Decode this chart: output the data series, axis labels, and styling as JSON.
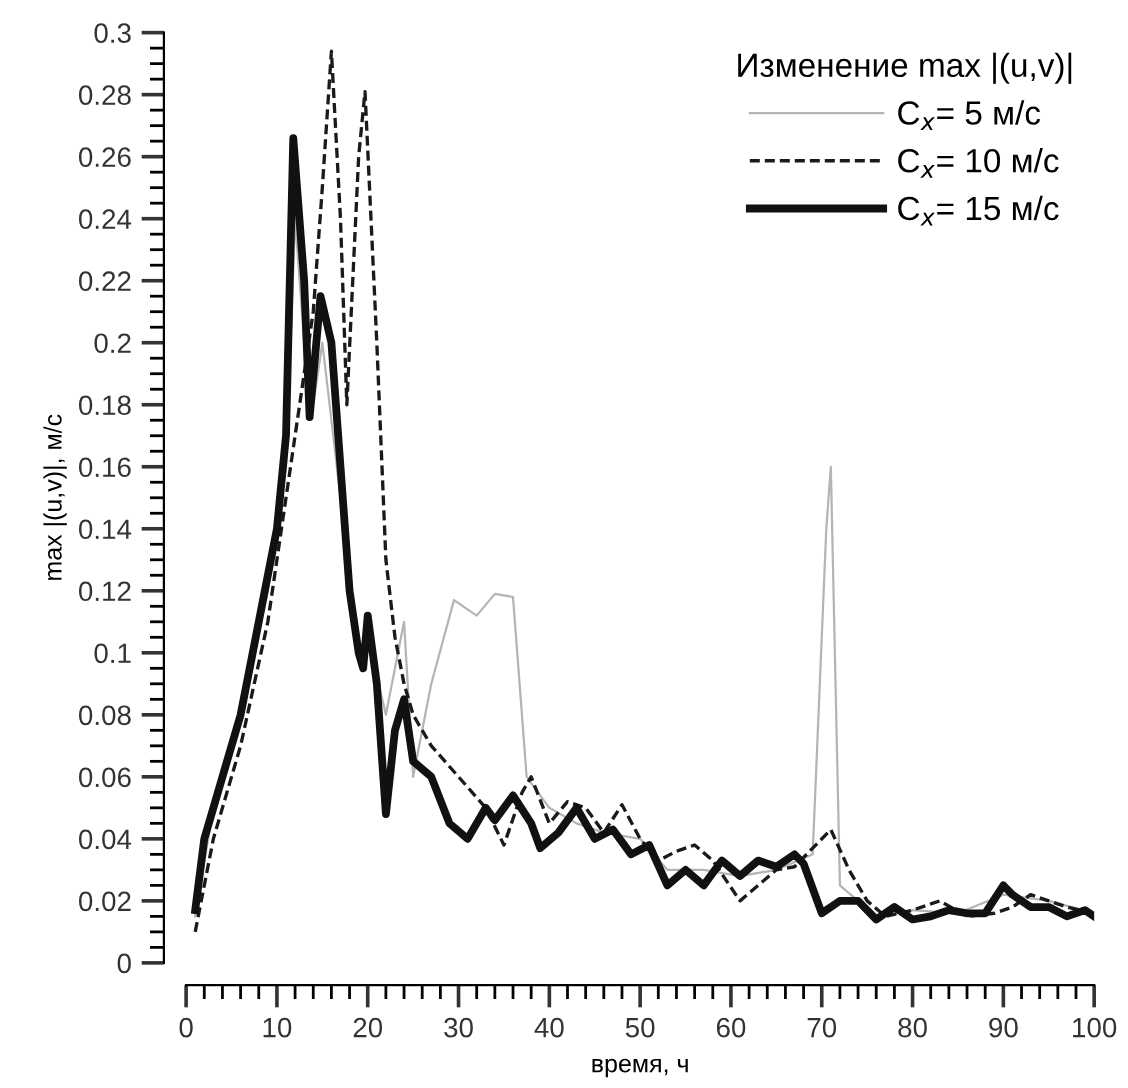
{
  "chart_data": {
    "type": "line",
    "xlabel": "время, ч",
    "ylabel": "max |(u,v)|, м/с",
    "legend_title": "Изменение max |(u,v)|",
    "xlim": [
      0,
      100
    ],
    "ylim": [
      0,
      0.3
    ],
    "xticks": [
      0,
      10,
      20,
      30,
      40,
      50,
      60,
      70,
      80,
      90,
      100
    ],
    "yticks": [
      0,
      0.02,
      0.04,
      0.06,
      0.08,
      0.1,
      0.12,
      0.14,
      0.16,
      0.18,
      0.2,
      0.22,
      0.24,
      0.26,
      0.28,
      0.3
    ],
    "grid": false,
    "legend": "top right",
    "marker": "none",
    "series": [
      {
        "name": "C$_{x}$= 5 м/с",
        "color": "#b4b4b4",
        "line_style": "solid",
        "x": [
          1,
          3,
          6,
          9,
          11,
          12,
          13,
          14,
          15,
          17,
          19,
          20,
          22,
          24,
          25,
          27,
          29.5,
          32,
          34,
          36,
          37.5,
          40,
          43,
          46,
          50,
          53,
          57,
          61,
          65,
          69,
          70.5,
          71,
          72,
          76,
          80,
          85,
          90,
          95,
          100
        ],
        "values": [
          0.015,
          0.05,
          0.08,
          0.12,
          0.16,
          0.24,
          0.2,
          0.18,
          0.2,
          0.15,
          0.1,
          0.105,
          0.08,
          0.11,
          0.06,
          0.09,
          0.117,
          0.112,
          0.119,
          0.118,
          0.06,
          0.05,
          0.045,
          0.042,
          0.04,
          0.03,
          0.03,
          0.028,
          0.03,
          0.035,
          0.14,
          0.16,
          0.025,
          0.015,
          0.017,
          0.016,
          0.022,
          0.02,
          0.016
        ]
      },
      {
        "name": "C$_{x}$= 10 м/с",
        "color": "#1a1a1a",
        "line_style": "dashed",
        "x": [
          1,
          3,
          6,
          9,
          11,
          13,
          14,
          15,
          16,
          17,
          17.7,
          19,
          19.7,
          21,
          22,
          23,
          24,
          25,
          27,
          30,
          33,
          35,
          37,
          38,
          40,
          42,
          44,
          46,
          48,
          50,
          52,
          54,
          56,
          58,
          61,
          63,
          65,
          67,
          69,
          71,
          73,
          75,
          77,
          80,
          83,
          86,
          89,
          91,
          93,
          95,
          97,
          100
        ],
        "values": [
          0.01,
          0.04,
          0.07,
          0.11,
          0.15,
          0.19,
          0.21,
          0.25,
          0.294,
          0.24,
          0.18,
          0.26,
          0.281,
          0.2,
          0.13,
          0.105,
          0.09,
          0.08,
          0.07,
          0.06,
          0.05,
          0.038,
          0.055,
          0.06,
          0.045,
          0.052,
          0.05,
          0.042,
          0.051,
          0.04,
          0.033,
          0.036,
          0.038,
          0.033,
          0.02,
          0.025,
          0.03,
          0.031,
          0.037,
          0.043,
          0.03,
          0.02,
          0.015,
          0.017,
          0.02,
          0.015,
          0.016,
          0.018,
          0.022,
          0.02,
          0.018,
          0.016
        ]
      },
      {
        "name": "C$_{x}$= 15 м/с",
        "color": "#111111",
        "line_style": "solid",
        "x": [
          1,
          2,
          4,
          6,
          8,
          10,
          11,
          11.8,
          13,
          13.6,
          14.8,
          16,
          17,
          18,
          19,
          19.5,
          20,
          21,
          22,
          23,
          24,
          25,
          27,
          29,
          31,
          33,
          34,
          36,
          38,
          39,
          41,
          43,
          45,
          47,
          49,
          51,
          53,
          55,
          57,
          59,
          61,
          63,
          65,
          67,
          68,
          70,
          72,
          74,
          76,
          78,
          80,
          82,
          84,
          86,
          88,
          90,
          91,
          93,
          95,
          97,
          99,
          100
        ],
        "values": [
          0.017,
          0.04,
          0.06,
          0.08,
          0.11,
          0.14,
          0.17,
          0.266,
          0.22,
          0.176,
          0.215,
          0.2,
          0.16,
          0.12,
          0.1,
          0.095,
          0.112,
          0.09,
          0.048,
          0.075,
          0.085,
          0.065,
          0.06,
          0.045,
          0.04,
          0.05,
          0.046,
          0.054,
          0.045,
          0.037,
          0.042,
          0.05,
          0.04,
          0.043,
          0.035,
          0.038,
          0.025,
          0.03,
          0.025,
          0.033,
          0.028,
          0.033,
          0.031,
          0.035,
          0.032,
          0.016,
          0.02,
          0.02,
          0.014,
          0.018,
          0.014,
          0.015,
          0.017,
          0.016,
          0.016,
          0.025,
          0.022,
          0.018,
          0.018,
          0.015,
          0.017,
          0.015
        ]
      }
    ]
  }
}
